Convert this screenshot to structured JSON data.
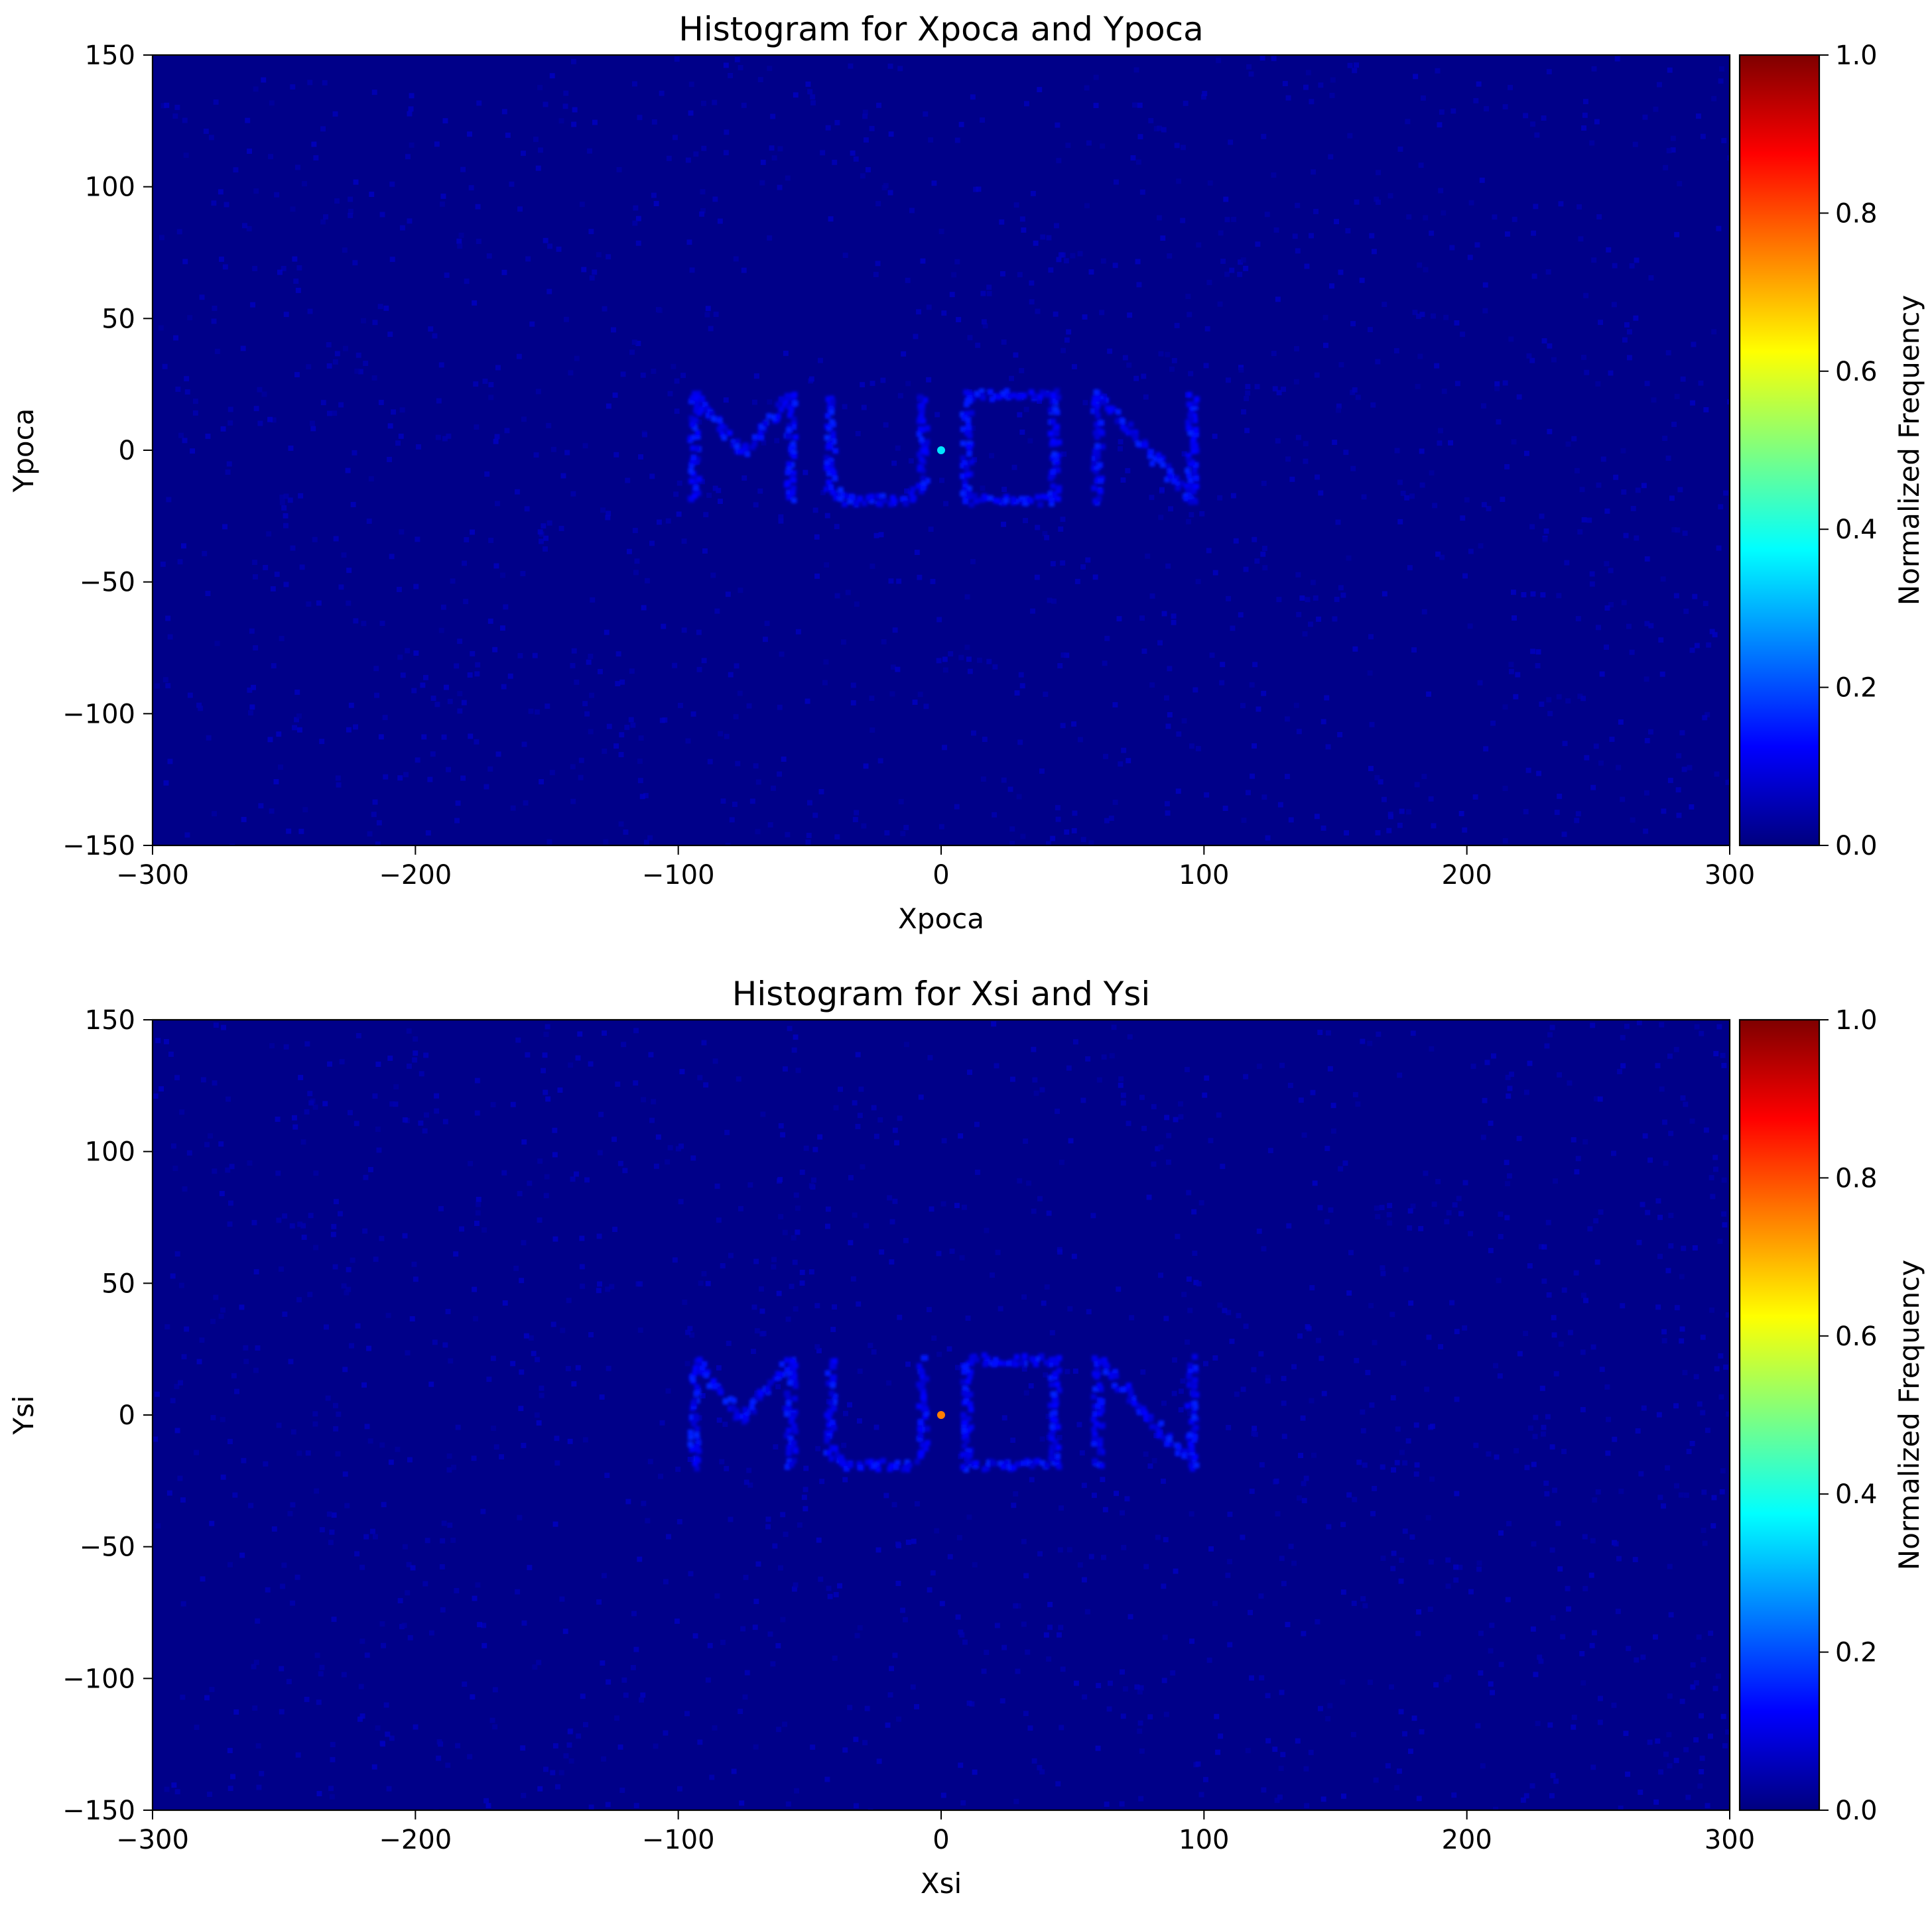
{
  "colormap": {
    "name": "jet",
    "background_color": "#000080",
    "stops": [
      "#00007f",
      "#0000ff",
      "#007fff",
      "#00ffff",
      "#7fff7f",
      "#ffff00",
      "#ff7f00",
      "#ff0000",
      "#7f0000"
    ]
  },
  "chart_data": [
    {
      "type": "heatmap",
      "title": "Histogram for Xpoca and Ypoca",
      "xlabel": "Xpoca",
      "ylabel": "Ypoca",
      "xlim": [
        -300,
        300
      ],
      "ylim": [
        -150,
        150
      ],
      "xticks": [
        -300,
        -200,
        -100,
        0,
        100,
        200,
        300
      ],
      "yticks": [
        -150,
        -100,
        -50,
        0,
        50,
        100,
        150
      ],
      "xtick_labels": [
        "−300",
        "−200",
        "−100",
        "0",
        "100",
        "200",
        "300"
      ],
      "ytick_labels": [
        "−150",
        "−100",
        "−50",
        "0",
        "50",
        "100",
        "150"
      ],
      "colorbar": {
        "label": "Normalized Frequency",
        "range": [
          0.0,
          1.0
        ],
        "ticks": [
          0.0,
          0.2,
          0.4,
          0.6,
          0.8,
          1.0
        ],
        "tick_labels": [
          "0.0",
          "0.2",
          "0.4",
          "0.6",
          "0.8",
          "1.0"
        ]
      },
      "background_level": 0.01,
      "features": [
        {
          "shape": "letters",
          "text": "MUON",
          "x_range": [
            -102,
            102
          ],
          "y_range": [
            -18,
            22
          ],
          "level": 0.1
        },
        {
          "shape": "point",
          "x": 0,
          "y": 0,
          "level": 0.35
        }
      ]
    },
    {
      "type": "heatmap",
      "title": "Histogram for Xsi and Ysi",
      "xlabel": "Xsi",
      "ylabel": "Ysi",
      "xlim": [
        -300,
        300
      ],
      "ylim": [
        -150,
        150
      ],
      "xticks": [
        -300,
        -200,
        -100,
        0,
        100,
        200,
        300
      ],
      "yticks": [
        -150,
        -100,
        -50,
        0,
        50,
        100,
        150
      ],
      "xtick_labels": [
        "−300",
        "−200",
        "−100",
        "0",
        "100",
        "200",
        "300"
      ],
      "ytick_labels": [
        "−150",
        "−100",
        "−50",
        "0",
        "50",
        "100",
        "150"
      ],
      "colorbar": {
        "label": "Normalized Frequency",
        "range": [
          0.0,
          1.0
        ],
        "ticks": [
          0.0,
          0.2,
          0.4,
          0.6,
          0.8,
          1.0
        ],
        "tick_labels": [
          "0.0",
          "0.2",
          "0.4",
          "0.6",
          "0.8",
          "1.0"
        ]
      },
      "background_level": 0.01,
      "features": [
        {
          "shape": "letters",
          "text": "MUON",
          "x_range": [
            -102,
            102
          ],
          "y_range": [
            -18,
            22
          ],
          "level": 0.1
        },
        {
          "shape": "point",
          "x": 0,
          "y": 0,
          "level": 0.75
        }
      ]
    }
  ]
}
